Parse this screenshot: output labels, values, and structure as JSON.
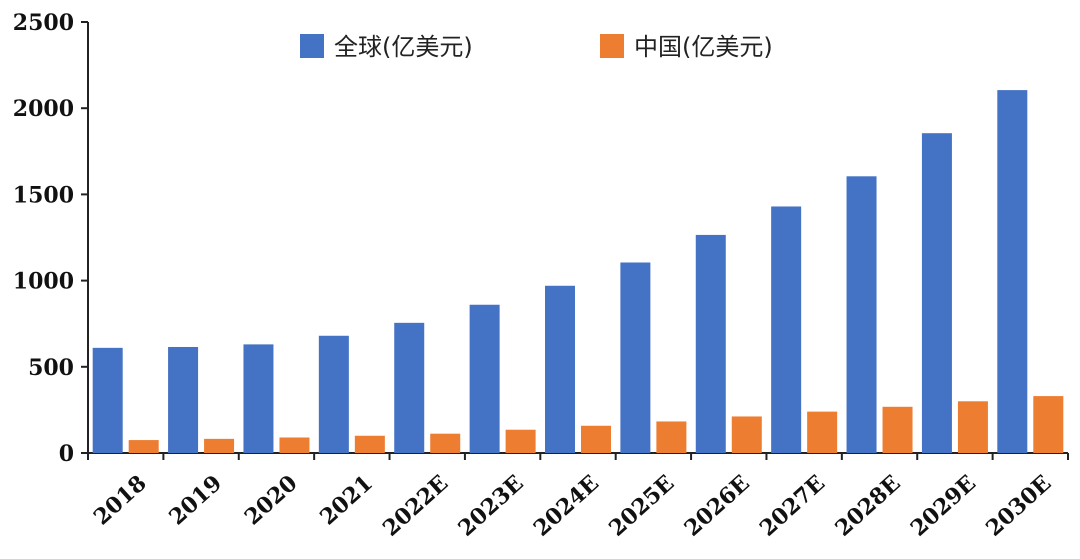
{
  "chart_data": {
    "type": "bar",
    "title": "",
    "xlabel": "",
    "ylabel": "",
    "categories": [
      "2018",
      "2019",
      "2020",
      "2021",
      "2022E",
      "2023E",
      "2024E",
      "2025E",
      "2026E",
      "2027E",
      "2028E",
      "2029E",
      "2030E"
    ],
    "series": [
      {
        "name": "全球(亿美元)",
        "color": "#4472C4",
        "values": [
          610,
          615,
          630,
          680,
          755,
          860,
          970,
          1105,
          1265,
          1430,
          1605,
          1855,
          2105
        ]
      },
      {
        "name": "中国(亿美元)",
        "color": "#ED7D31",
        "values": [
          75,
          82,
          90,
          100,
          112,
          135,
          158,
          183,
          212,
          240,
          268,
          300,
          330
        ]
      }
    ],
    "ylim": [
      0,
      2500
    ],
    "yticks": [
      0,
      500,
      1000,
      1500,
      2000,
      2500
    ],
    "grid": false,
    "legend_position": "top"
  }
}
